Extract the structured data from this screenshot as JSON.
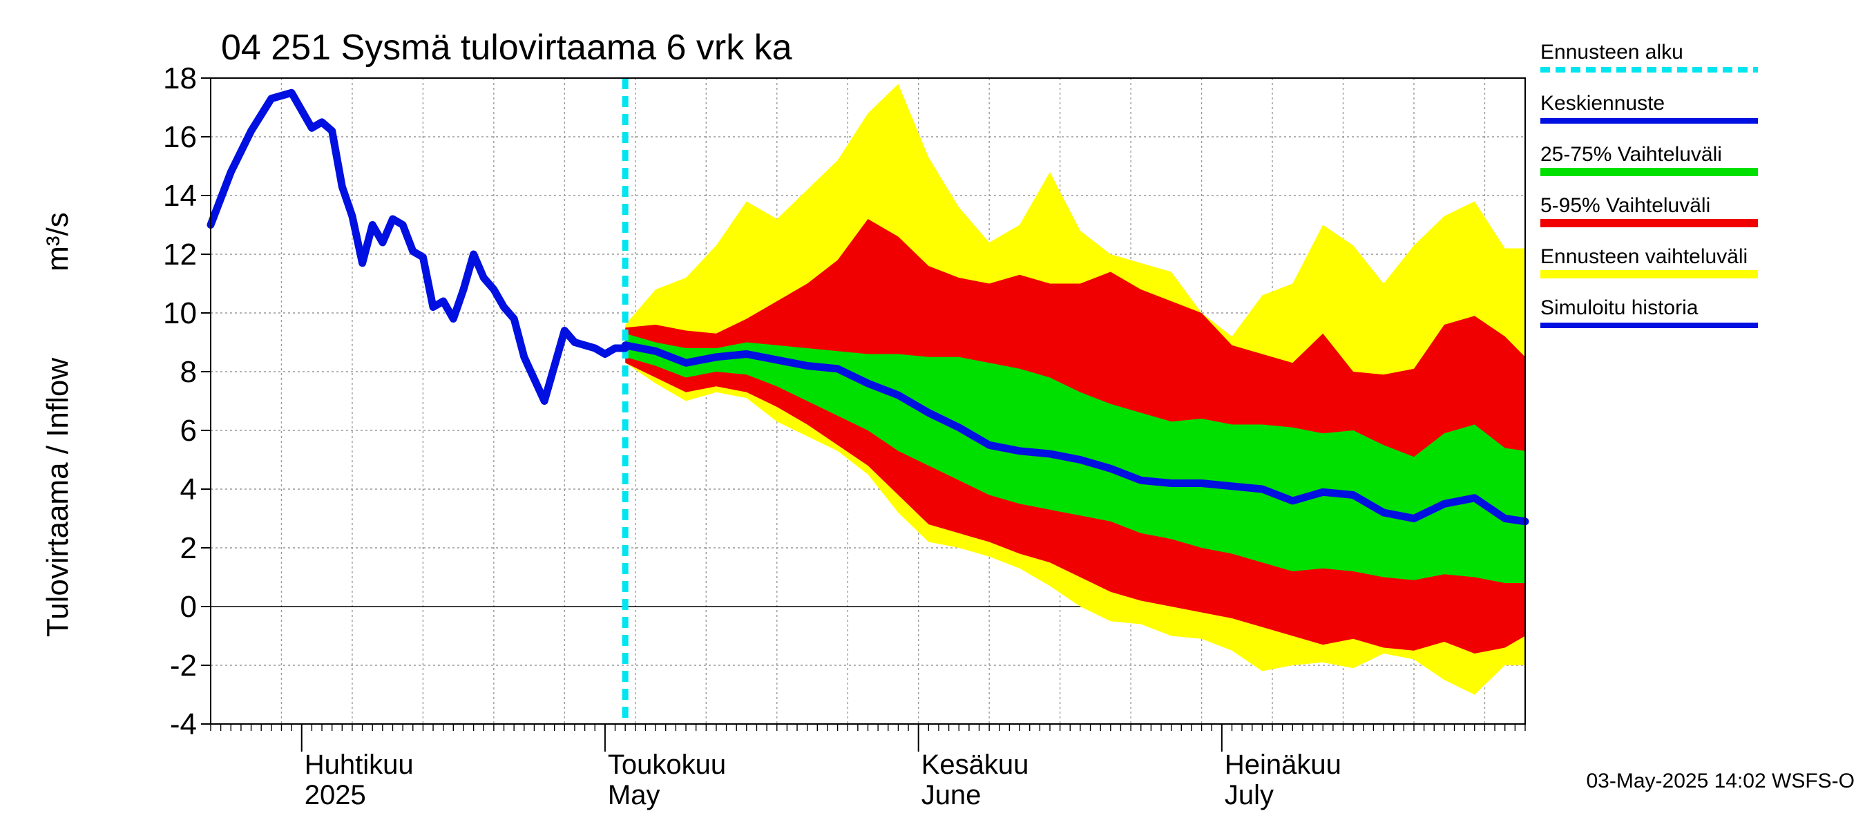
{
  "chart_data": {
    "type": "area",
    "title": "04 251 Sysmä tulovirtaama 6 vrk ka",
    "ylabel": "Tulovirtaama / Inflow",
    "yunit": "m³/s",
    "ylim": [
      -4,
      18
    ],
    "yticks": [
      "18",
      "16",
      "14",
      "12",
      "10",
      "8",
      "6",
      "4",
      "2",
      "0",
      "-2",
      "-4"
    ],
    "xlim": [
      "2025-03-23",
      "2025-07-31"
    ],
    "grid": true,
    "legend_placement": "right",
    "forecast_start": "2025-05-03",
    "x_month_labels": [
      {
        "date": "2025-04-01",
        "fi": "Huhtikuu",
        "en": "2025"
      },
      {
        "date": "2025-05-01",
        "fi": "Toukokuu",
        "en": "May"
      },
      {
        "date": "2025-06-01",
        "fi": "Kesäkuu",
        "en": "June"
      },
      {
        "date": "2025-07-01",
        "fi": "Heinäkuu",
        "en": "July"
      }
    ],
    "legend": [
      {
        "label": "Ennusteen alku",
        "color": "#00e5f0",
        "style": "dashed"
      },
      {
        "label": "Keskiennuste",
        "color": "#0010e0",
        "style": "line"
      },
      {
        "label": "25-75% Vaihteluväli",
        "color": "#00e000",
        "style": "band"
      },
      {
        "label": "5-95% Vaihteluväli",
        "color": "#f00000",
        "style": "band"
      },
      {
        "label": "Ennusteen vaihteluväli",
        "color": "#ffff00",
        "style": "band"
      },
      {
        "label": "Simuloitu historia",
        "color": "#0010e0",
        "style": "line"
      }
    ],
    "history": {
      "x": [
        "2025-03-23",
        "2025-03-25",
        "2025-03-27",
        "2025-03-29",
        "2025-03-31",
        "2025-04-02",
        "2025-04-03",
        "2025-04-04",
        "2025-04-05",
        "2025-04-06",
        "2025-04-07",
        "2025-04-08",
        "2025-04-09",
        "2025-04-10",
        "2025-04-11",
        "2025-04-12",
        "2025-04-13",
        "2025-04-14",
        "2025-04-15",
        "2025-04-16",
        "2025-04-17",
        "2025-04-18",
        "2025-04-19",
        "2025-04-20",
        "2025-04-21",
        "2025-04-22",
        "2025-04-23",
        "2025-04-25",
        "2025-04-26",
        "2025-04-27",
        "2025-04-28",
        "2025-04-30",
        "2025-05-01",
        "2025-05-02",
        "2025-05-03"
      ],
      "y": [
        13.0,
        14.8,
        16.2,
        17.3,
        17.5,
        16.3,
        16.5,
        16.2,
        14.3,
        13.3,
        11.7,
        13.0,
        12.4,
        13.2,
        13.0,
        12.1,
        11.9,
        10.2,
        10.4,
        9.8,
        10.8,
        12.0,
        11.2,
        10.8,
        10.2,
        9.8,
        8.5,
        7.0,
        8.2,
        9.4,
        9.0,
        8.8,
        8.6,
        8.8,
        8.8
      ]
    },
    "forecast": {
      "x": [
        "2025-05-03",
        "2025-05-06",
        "2025-05-09",
        "2025-05-12",
        "2025-05-15",
        "2025-05-18",
        "2025-05-21",
        "2025-05-24",
        "2025-05-27",
        "2025-05-30",
        "2025-06-02",
        "2025-06-05",
        "2025-06-08",
        "2025-06-11",
        "2025-06-14",
        "2025-06-17",
        "2025-06-20",
        "2025-06-23",
        "2025-06-26",
        "2025-06-29",
        "2025-07-02",
        "2025-07-05",
        "2025-07-08",
        "2025-07-11",
        "2025-07-14",
        "2025-07-17",
        "2025-07-20",
        "2025-07-23",
        "2025-07-26",
        "2025-07-29",
        "2025-07-31"
      ],
      "median": [
        8.9,
        8.7,
        8.3,
        8.5,
        8.6,
        8.4,
        8.2,
        8.1,
        7.6,
        7.2,
        6.6,
        6.1,
        5.5,
        5.3,
        5.2,
        5.0,
        4.7,
        4.3,
        4.2,
        4.2,
        4.1,
        4.0,
        3.6,
        3.9,
        3.8,
        3.2,
        3.0,
        3.5,
        3.7,
        3.0,
        2.9
      ],
      "p25": [
        8.5,
        8.2,
        7.8,
        8.0,
        7.9,
        7.5,
        7.0,
        6.5,
        6.0,
        5.3,
        4.8,
        4.3,
        3.8,
        3.5,
        3.3,
        3.1,
        2.9,
        2.5,
        2.3,
        2.0,
        1.8,
        1.5,
        1.2,
        1.3,
        1.2,
        1.0,
        0.9,
        1.1,
        1.0,
        0.8,
        0.8
      ],
      "p75": [
        9.3,
        9.0,
        8.8,
        8.8,
        9.0,
        8.9,
        8.8,
        8.7,
        8.6,
        8.6,
        8.5,
        8.5,
        8.3,
        8.1,
        7.8,
        7.3,
        6.9,
        6.6,
        6.3,
        6.4,
        6.2,
        6.2,
        6.1,
        5.9,
        6.0,
        5.5,
        5.1,
        5.9,
        6.2,
        5.4,
        5.3
      ],
      "p05": [
        8.3,
        7.8,
        7.3,
        7.5,
        7.3,
        6.8,
        6.2,
        5.5,
        4.8,
        3.8,
        2.8,
        2.5,
        2.2,
        1.8,
        1.5,
        1.0,
        0.5,
        0.2,
        0.0,
        -0.2,
        -0.4,
        -0.7,
        -1.0,
        -1.3,
        -1.1,
        -1.4,
        -1.5,
        -1.2,
        -1.6,
        -1.4,
        -1.0
      ],
      "p95": [
        9.5,
        9.6,
        9.4,
        9.3,
        9.8,
        10.4,
        11.0,
        11.8,
        13.2,
        12.6,
        11.6,
        11.2,
        11.0,
        11.3,
        11.0,
        11.0,
        11.4,
        10.8,
        10.4,
        10.0,
        8.9,
        8.6,
        8.3,
        9.3,
        8.0,
        7.9,
        8.1,
        9.6,
        9.9,
        9.2,
        8.5
      ],
      "min": [
        8.3,
        7.6,
        7.0,
        7.3,
        7.1,
        6.3,
        5.8,
        5.3,
        4.5,
        3.2,
        2.2,
        2.0,
        1.7,
        1.3,
        0.7,
        0.0,
        -0.5,
        -0.6,
        -1.0,
        -1.1,
        -1.5,
        -2.2,
        -2.0,
        -1.9,
        -2.1,
        -1.6,
        -1.8,
        -2.5,
        -3.0,
        -2.0,
        -2.0
      ],
      "max": [
        9.6,
        10.8,
        11.2,
        12.3,
        13.8,
        13.2,
        14.2,
        15.2,
        16.8,
        17.8,
        15.3,
        13.6,
        12.4,
        13.0,
        14.8,
        12.8,
        12.0,
        11.7,
        11.4,
        10.0,
        9.2,
        10.6,
        11.0,
        13.0,
        12.3,
        11.0,
        12.3,
        13.3,
        13.8,
        12.2,
        12.2
      ]
    }
  },
  "footer": {
    "timestamp": "03-May-2025 14:02 WSFS-O"
  }
}
